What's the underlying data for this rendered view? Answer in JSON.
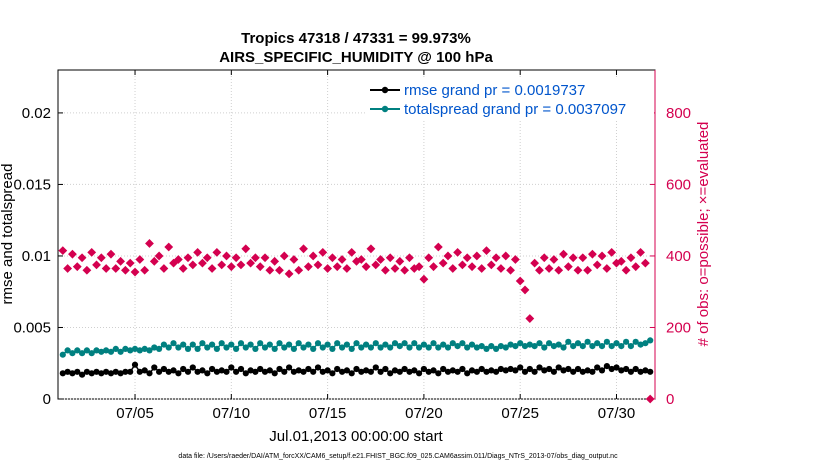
{
  "chart_data": {
    "type": "scatter",
    "title": "Tropics 47318 / 47331 = 99.973%",
    "subtitle": "AIRS_SPECIFIC_HUMIDITY @ 100 hPa",
    "xlabel": "Jul.01,2013 00:00:00 start",
    "ylabel_left": "rmse and totalspread",
    "ylabel_right": "# of obs: o=possible; ×=evaluated",
    "xlim": [
      1,
      32
    ],
    "ylim_left": [
      0,
      0.023
    ],
    "ylim_right": [
      0,
      920
    ],
    "x_ticks": [
      5,
      10,
      15,
      20,
      25,
      30
    ],
    "x_tick_labels": [
      "07/05",
      "07/10",
      "07/15",
      "07/20",
      "07/25",
      "07/30"
    ],
    "y_left_ticks": [
      0,
      0.005,
      0.01,
      0.015,
      0.02
    ],
    "y_left_tick_labels": [
      "0",
      "0.005",
      "0.01",
      "0.015",
      "0.02"
    ],
    "y_right_ticks": [
      0,
      200,
      400,
      600,
      800
    ],
    "y_right_tick_labels": [
      "0",
      "200",
      "400",
      "600",
      "800"
    ],
    "x_start": 1.25,
    "x_step": 0.25,
    "series": [
      {
        "name": "rmse grand pr = 0.0019737",
        "color": "#000000",
        "axis": "left",
        "style": "line-dot",
        "values": [
          0.0018,
          0.0019,
          0.0018,
          0.0019,
          0.0017,
          0.0019,
          0.0018,
          0.0019,
          0.0018,
          0.0019,
          0.0018,
          0.0019,
          0.0018,
          0.0019,
          0.0019,
          0.0024,
          0.0019,
          0.002,
          0.0018,
          0.0022,
          0.0019,
          0.0021,
          0.0019,
          0.002,
          0.0018,
          0.0021,
          0.0019,
          0.0022,
          0.0019,
          0.002,
          0.0018,
          0.0021,
          0.0019,
          0.002,
          0.0019,
          0.0022,
          0.0019,
          0.0021,
          0.0018,
          0.002,
          0.0019,
          0.0021,
          0.0019,
          0.002,
          0.0018,
          0.0021,
          0.0019,
          0.0022,
          0.0019,
          0.002,
          0.0019,
          0.0021,
          0.0019,
          0.0022,
          0.0019,
          0.002,
          0.0018,
          0.0021,
          0.0019,
          0.002,
          0.0018,
          0.0021,
          0.0019,
          0.002,
          0.0019,
          0.0022,
          0.0019,
          0.0021,
          0.0018,
          0.002,
          0.0019,
          0.0021,
          0.0019,
          0.002,
          0.0018,
          0.0021,
          0.0019,
          0.002,
          0.0018,
          0.0021,
          0.0019,
          0.002,
          0.0019,
          0.0021,
          0.0018,
          0.002,
          0.0019,
          0.0021,
          0.0019,
          0.002,
          0.0019,
          0.0021,
          0.002,
          0.0021,
          0.002,
          0.0022,
          0.0019,
          0.0021,
          0.0019,
          0.0022,
          0.002,
          0.0021,
          0.0019,
          0.0022,
          0.002,
          0.0021,
          0.0019,
          0.0021,
          0.0019,
          0.002,
          0.0019,
          0.0022,
          0.002,
          0.0023,
          0.0021,
          0.0022,
          0.002,
          0.0021,
          0.0019,
          0.0021,
          0.0019,
          0.002,
          0.0019
        ]
      },
      {
        "name": "totalspread grand pr = 0.0037097",
        "color": "#008080",
        "axis": "left",
        "style": "line-dot",
        "values": [
          0.0031,
          0.0034,
          0.0032,
          0.0034,
          0.0032,
          0.0034,
          0.0032,
          0.0034,
          0.0033,
          0.0034,
          0.0033,
          0.0035,
          0.0033,
          0.0035,
          0.0034,
          0.0035,
          0.0034,
          0.0035,
          0.0034,
          0.0036,
          0.0035,
          0.0038,
          0.0036,
          0.0039,
          0.0036,
          0.0038,
          0.0035,
          0.0038,
          0.0035,
          0.0039,
          0.0036,
          0.0038,
          0.0035,
          0.0039,
          0.0036,
          0.0038,
          0.0035,
          0.0039,
          0.0036,
          0.0038,
          0.0035,
          0.0039,
          0.0036,
          0.0038,
          0.0035,
          0.0039,
          0.0036,
          0.0038,
          0.0035,
          0.0039,
          0.0036,
          0.0038,
          0.0035,
          0.0039,
          0.0036,
          0.0038,
          0.0035,
          0.0039,
          0.0036,
          0.0038,
          0.0035,
          0.0039,
          0.0036,
          0.0038,
          0.0036,
          0.0039,
          0.0036,
          0.0038,
          0.0036,
          0.0039,
          0.0037,
          0.0039,
          0.0036,
          0.0039,
          0.0036,
          0.0038,
          0.0036,
          0.0039,
          0.0036,
          0.0038,
          0.0036,
          0.0039,
          0.0037,
          0.0039,
          0.0036,
          0.0038,
          0.0036,
          0.0037,
          0.0035,
          0.0037,
          0.0035,
          0.0037,
          0.0036,
          0.0038,
          0.0037,
          0.0039,
          0.0037,
          0.0038,
          0.0037,
          0.0039,
          0.0036,
          0.0039,
          0.0037,
          0.0038,
          0.0036,
          0.004,
          0.0037,
          0.0039,
          0.0037,
          0.004,
          0.0037,
          0.0039,
          0.0037,
          0.004,
          0.0037,
          0.0039,
          0.0037,
          0.004,
          0.0037,
          0.004,
          0.0038,
          0.0039,
          0.0041
        ]
      },
      {
        "name": "obs possible",
        "color": "#d4004f",
        "axis": "right",
        "style": "marker",
        "values": [
          415,
          365,
          405,
          370,
          395,
          360,
          410,
          375,
          395,
          365,
          405,
          365,
          385,
          360,
          380,
          355,
          390,
          360,
          435,
          385,
          400,
          365,
          425,
          380,
          390,
          365,
          395,
          375,
          410,
          380,
          395,
          365,
          410,
          375,
          400,
          370,
          395,
          375,
          420,
          380,
          395,
          370,
          395,
          360,
          385,
          360,
          400,
          350,
          390,
          360,
          420,
          370,
          400,
          375,
          410,
          365,
          395,
          370,
          390,
          365,
          410,
          385,
          390,
          370,
          420,
          375,
          390,
          360,
          395,
          365,
          385,
          360,
          395,
          365,
          370,
          335,
          395,
          370,
          425,
          380,
          400,
          365,
          410,
          375,
          395,
          370,
          400,
          365,
          415,
          375,
          395,
          365,
          400,
          360,
          390,
          330,
          305,
          225,
          380,
          360,
          395,
          365,
          390,
          360,
          405,
          370,
          395,
          360,
          395,
          360,
          405,
          375,
          400,
          365,
          410,
          380,
          385,
          360,
          395,
          370,
          410,
          380,
          0
        ]
      }
    ]
  },
  "footer_text": "data file: /Users/raeder/DAI/ATM_forcXX/CAM6_setup/f.e21.FHIST_BGC.f09_025.CAM6assim.011/Diags_NTrS_2013-07/obs_diag_output.nc"
}
